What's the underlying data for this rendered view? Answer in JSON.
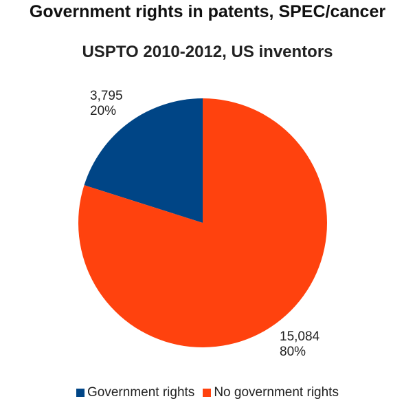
{
  "chart_data": {
    "type": "pie",
    "title": "Government rights in patents, SPEC/cancer",
    "subtitle": "USPTO 2010-2012, US inventors",
    "slices": [
      {
        "label": "Government rights",
        "value": 3795,
        "value_text": "3,795",
        "percent_text": "20%",
        "color": "#004586"
      },
      {
        "label": "No government rights",
        "value": 15084,
        "value_text": "15,084",
        "percent_text": "80%",
        "color": "#ff420e"
      }
    ],
    "legend_position": "bottom"
  }
}
